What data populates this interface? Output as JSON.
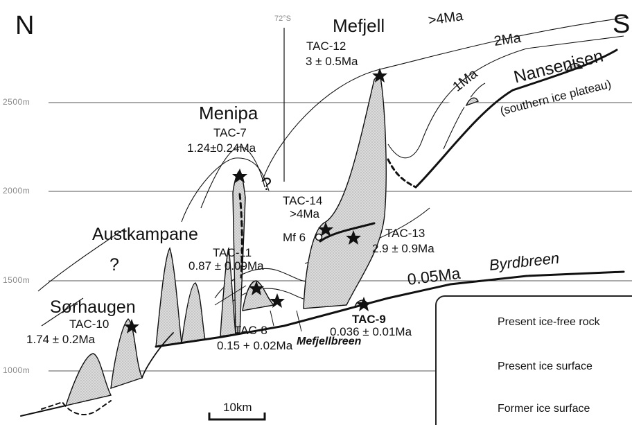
{
  "directions": {
    "north": "N",
    "south": "S"
  },
  "altitudes": [
    "2500m",
    "2000m",
    "1500m",
    "1000m"
  ],
  "north_marker": "72°S",
  "peaks": {
    "mefjell": "Mefjell",
    "menipa": "Menipa",
    "austkampane": "Austkampane",
    "sorhaugen": "Sørhaugen",
    "nansenisen": "Nansenisen",
    "nansenisen_sub": "(southern ice plateau)",
    "byrdbreen": "Byrdbreen",
    "mefjellbreen": "Mefjellbreen"
  },
  "samples": {
    "tac12": {
      "id": "TAC-12",
      "age": "3 ± 0.5Ma"
    },
    "tac7": {
      "id": "TAC-7",
      "age": "1.24±0.24Ma"
    },
    "tac14": {
      "id": "TAC-14",
      "age": ">4Ma"
    },
    "mf6": "Mf 6",
    "tac13": {
      "id": "TAC-13",
      "age": "2.9 ± 0.9Ma"
    },
    "tac11": {
      "id": "TAC-11",
      "age": "0.87 ± 0.09Ma"
    },
    "tac10": {
      "id": "TAC-10",
      "age": "1.74 ± 0.2Ma"
    },
    "tac8": {
      "id": "TAC-8",
      "age": "0.15 + 0.02Ma"
    },
    "tac9": {
      "id": "TAC-9",
      "age": "0.036 ± 0.01Ma"
    }
  },
  "isochrons": {
    "gt4": ">4Ma",
    "two": "2Ma",
    "one": "1Ma",
    "recent": "0.05Ma"
  },
  "question_marks": [
    "?",
    "?"
  ],
  "scale_bar": "10km",
  "legend": {
    "ice_free": "Present ice-free rock",
    "present_ice": "Present ice surface",
    "former_ice": "Former ice surface"
  },
  "colors": {
    "rock_fill": "#d6d6d6",
    "line": "#111111",
    "grid": "#555555"
  }
}
